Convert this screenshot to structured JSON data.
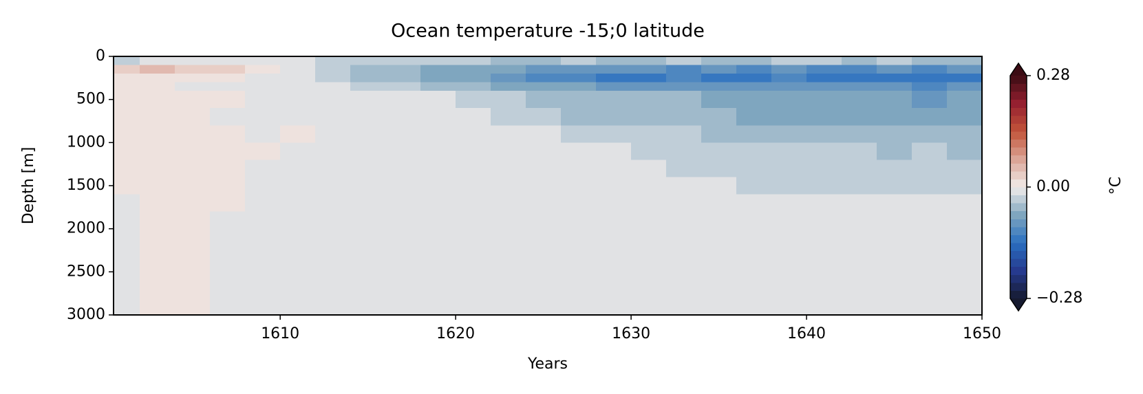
{
  "chart_data": {
    "type": "heatmap",
    "title": "Ocean temperature -15;0 latitude",
    "xlabel": "Years",
    "ylabel": "Depth [m]",
    "xlim": [
      1600.5,
      1650
    ],
    "xticks": [
      1610,
      1620,
      1630,
      1640,
      1650
    ],
    "ylim": [
      3000,
      0
    ],
    "yticks": [
      0,
      500,
      1000,
      1500,
      2000,
      2500,
      3000
    ],
    "xbins": [
      1600.5,
      1602,
      1604,
      1606,
      1608,
      1610,
      1612,
      1614,
      1616,
      1618,
      1620,
      1622,
      1624,
      1626,
      1628,
      1630,
      1632,
      1634,
      1636,
      1638,
      1640,
      1642,
      1644,
      1646,
      1648,
      1650
    ],
    "ybins": [
      0,
      100,
      200,
      300,
      400,
      600,
      800,
      1000,
      1200,
      1400,
      1600,
      1800,
      2000,
      2500,
      3000
    ],
    "values": [
      [
        -0.03,
        -0.02,
        -0.02,
        -0.01,
        -0.01,
        -0.02,
        -0.03,
        -0.03,
        -0.04,
        -0.04,
        -0.04,
        -0.05,
        -0.05,
        -0.04,
        -0.05,
        -0.05,
        -0.04,
        -0.05,
        -0.05,
        -0.04,
        -0.04,
        -0.05,
        -0.04,
        -0.05,
        -0.05
      ],
      [
        0.03,
        0.04,
        0.03,
        0.02,
        0.01,
        -0.02,
        -0.04,
        -0.05,
        -0.06,
        -0.07,
        -0.08,
        -0.08,
        -0.09,
        -0.09,
        -0.1,
        -0.1,
        -0.11,
        -0.1,
        -0.11,
        -0.1,
        -0.11,
        -0.11,
        -0.1,
        -0.11,
        -0.1
      ],
      [
        0.01,
        0.01,
        0.0,
        0.0,
        -0.01,
        -0.02,
        -0.03,
        -0.05,
        -0.06,
        -0.07,
        -0.08,
        -0.1,
        -0.12,
        -0.12,
        -0.13,
        -0.13,
        -0.12,
        -0.13,
        -0.13,
        -0.12,
        -0.13,
        -0.13,
        -0.14,
        -0.13,
        -0.14
      ],
      [
        0.0,
        0.0,
        -0.005,
        -0.005,
        -0.01,
        -0.01,
        -0.02,
        -0.03,
        -0.04,
        -0.05,
        -0.06,
        -0.07,
        -0.08,
        -0.08,
        -0.09,
        -0.09,
        -0.09,
        -0.1,
        -0.1,
        -0.09,
        -0.1,
        -0.1,
        -0.1,
        -0.11,
        -0.1
      ],
      [
        0.005,
        0.005,
        0.0,
        0.0,
        -0.005,
        -0.005,
        -0.005,
        -0.01,
        -0.02,
        -0.02,
        -0.03,
        -0.04,
        -0.05,
        -0.05,
        -0.06,
        -0.06,
        -0.06,
        -0.07,
        -0.07,
        -0.07,
        -0.08,
        -0.08,
        -0.08,
        -0.09,
        -0.08
      ],
      [
        0.0,
        0.005,
        0.0,
        -0.005,
        -0.005,
        -0.005,
        -0.005,
        -0.005,
        -0.01,
        -0.02,
        -0.02,
        -0.03,
        -0.04,
        -0.05,
        -0.05,
        -0.06,
        -0.06,
        -0.06,
        -0.07,
        -0.07,
        -0.07,
        -0.07,
        -0.08,
        -0.07,
        -0.08
      ],
      [
        0.005,
        0.01,
        0.005,
        0.0,
        -0.005,
        0.005,
        -0.005,
        -0.005,
        -0.005,
        -0.005,
        -0.005,
        -0.01,
        -0.02,
        -0.03,
        -0.03,
        -0.04,
        -0.04,
        -0.05,
        -0.05,
        -0.05,
        -0.06,
        -0.06,
        -0.06,
        -0.06,
        -0.06
      ],
      [
        0.005,
        0.01,
        0.005,
        0.005,
        0.005,
        -0.005,
        -0.005,
        -0.005,
        -0.005,
        -0.005,
        -0.005,
        -0.01,
        -0.01,
        -0.02,
        -0.02,
        -0.03,
        -0.03,
        -0.03,
        -0.04,
        -0.04,
        -0.04,
        -0.04,
        -0.05,
        -0.04,
        -0.05
      ],
      [
        0.0,
        0.005,
        0.005,
        0.0,
        -0.005,
        -0.005,
        -0.005,
        -0.005,
        -0.005,
        -0.005,
        -0.005,
        -0.005,
        -0.01,
        -0.02,
        -0.02,
        -0.02,
        -0.03,
        -0.03,
        -0.03,
        -0.03,
        -0.04,
        -0.03,
        -0.04,
        -0.03,
        -0.04
      ],
      [
        0.0,
        0.005,
        0.005,
        0.0,
        -0.005,
        -0.005,
        -0.005,
        -0.005,
        -0.005,
        -0.005,
        -0.005,
        -0.005,
        -0.005,
        -0.01,
        -0.02,
        -0.02,
        -0.02,
        -0.02,
        -0.03,
        -0.03,
        -0.03,
        -0.03,
        -0.03,
        -0.03,
        -0.03
      ],
      [
        -0.005,
        0.005,
        0.005,
        0.005,
        -0.005,
        -0.005,
        -0.005,
        -0.005,
        -0.005,
        -0.005,
        -0.005,
        -0.005,
        -0.005,
        -0.005,
        -0.005,
        -0.005,
        -0.005,
        -0.005,
        -0.02,
        -0.02,
        -0.02,
        -0.02,
        -0.02,
        -0.02,
        -0.02
      ],
      [
        -0.005,
        0.005,
        0.005,
        -0.005,
        -0.005,
        -0.005,
        -0.005,
        -0.005,
        -0.005,
        -0.005,
        -0.005,
        -0.005,
        -0.005,
        -0.005,
        -0.005,
        -0.005,
        -0.005,
        -0.005,
        -0.005,
        -0.005,
        -0.02,
        -0.02,
        -0.02,
        -0.02,
        -0.02
      ],
      [
        -0.005,
        0.005,
        0.005,
        -0.005,
        -0.005,
        -0.005,
        -0.005,
        -0.005,
        -0.005,
        -0.005,
        -0.005,
        -0.005,
        -0.005,
        -0.005,
        -0.005,
        -0.005,
        -0.005,
        -0.005,
        -0.005,
        -0.005,
        -0.005,
        -0.005,
        -0.005,
        -0.005,
        -0.005
      ],
      [
        -0.005,
        0.005,
        0.005,
        -0.005,
        -0.005,
        -0.005,
        -0.005,
        -0.005,
        -0.005,
        -0.005,
        -0.005,
        -0.005,
        -0.005,
        -0.005,
        -0.005,
        -0.005,
        -0.005,
        -0.005,
        -0.005,
        -0.005,
        -0.005,
        -0.005,
        -0.005,
        -0.005,
        -0.005
      ]
    ],
    "colorbar": {
      "label": "°C",
      "lim": [
        -0.28,
        0.28
      ],
      "ticks": [
        {
          "value": -0.28,
          "label": "−0.28"
        },
        {
          "value": 0,
          "label": "0.00"
        },
        0.28
      ],
      "extend": "both",
      "colormap": [
        "#161a30",
        "#263a8e",
        "#2a6fc0",
        "#7fa6bf",
        "#f1ecea",
        "#dba597",
        "#c2553a",
        "#952030",
        "#3c0c14"
      ]
    }
  }
}
